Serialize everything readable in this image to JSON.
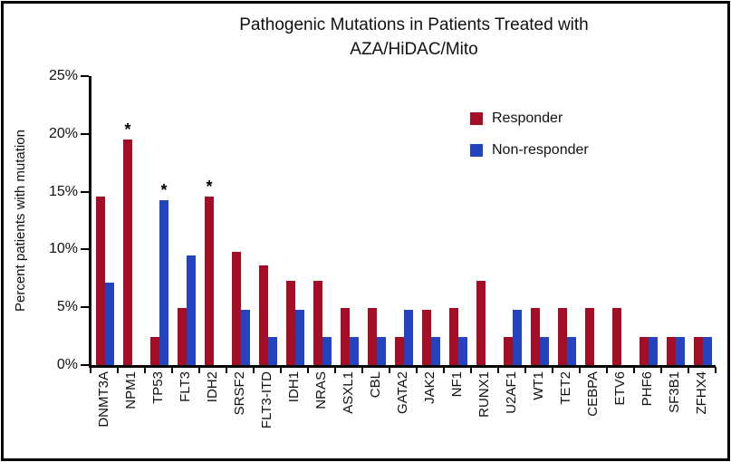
{
  "title": {
    "line1": "Pathogenic Mutations in Patients Treated with",
    "line2": "AZA/HiDAC/Mito"
  },
  "y_axis": {
    "label": "Percent patients with mutation",
    "ticks": [
      {
        "label": "25%",
        "value": 25
      },
      {
        "label": "20%",
        "value": 20
      },
      {
        "label": "15%",
        "value": 15
      },
      {
        "label": "10%",
        "value": 10
      },
      {
        "label": "5%",
        "value": 5
      },
      {
        "label": "0%",
        "value": 0
      }
    ]
  },
  "legend": {
    "items": [
      {
        "label": "Responder",
        "color": "#A40E26"
      },
      {
        "label": "Non-responder",
        "color": "#2343BF"
      }
    ]
  },
  "chart_data": {
    "type": "bar",
    "title": "Pathogenic Mutations in Patients Treated with AZA/HiDAC/Mito",
    "xlabel": "",
    "ylabel": "Percent patients with mutation",
    "ylim": [
      0,
      25
    ],
    "y_tick_labels": [
      "0%",
      "5%",
      "10%",
      "15%",
      "20%",
      "25%"
    ],
    "grid": false,
    "legend_position": "upper right",
    "categories": [
      "DNMT3A",
      "NPM1",
      "TP53",
      "FLT3",
      "IDH2",
      "SRSF2",
      "FLT3-ITD",
      "IDH1",
      "NRAS",
      "ASXL1",
      "CBL",
      "GATA2",
      "JAK2",
      "NF1",
      "RUNX1",
      "U2AF1",
      "WT1",
      "TET2",
      "CEBPA",
      "ETV6",
      "PHF6",
      "SF3B1",
      "ZFHX4"
    ],
    "series": [
      {
        "name": "Responder",
        "color": "#A40E26",
        "values": [
          14.6,
          19.5,
          2.4,
          4.9,
          14.6,
          9.8,
          8.6,
          7.3,
          7.3,
          4.9,
          4.9,
          2.4,
          4.8,
          4.9,
          7.3,
          2.4,
          4.9,
          4.9,
          4.9,
          4.9,
          2.4,
          2.4,
          2.4
        ]
      },
      {
        "name": "Non-responder",
        "color": "#2343BF",
        "values": [
          7.1,
          0,
          14.3,
          9.5,
          0,
          4.8,
          2.4,
          4.8,
          2.4,
          2.4,
          2.4,
          4.8,
          2.4,
          2.4,
          0,
          4.8,
          2.4,
          2.4,
          0,
          0,
          2.4,
          2.4,
          2.4
        ]
      }
    ],
    "significance_stars": [
      {
        "category": "NPM1",
        "series": "Responder"
      },
      {
        "category": "TP53",
        "series": "Non-responder"
      },
      {
        "category": "IDH2",
        "series": "Responder"
      }
    ]
  }
}
